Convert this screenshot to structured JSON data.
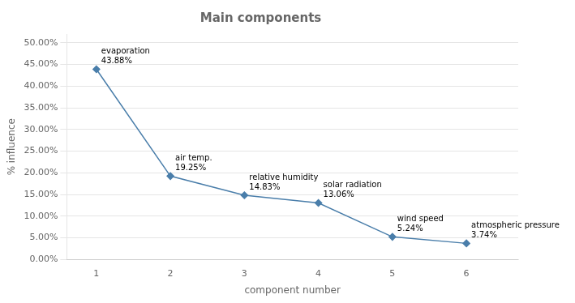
{
  "chart_data": {
    "type": "line",
    "title": "Main components",
    "xlabel": "component number",
    "ylabel": "% influence",
    "x": [
      1,
      2,
      3,
      4,
      5,
      6
    ],
    "values": [
      43.88,
      19.25,
      14.83,
      13.06,
      5.24,
      3.74
    ],
    "annotations": [
      "evaporation",
      "air temp.",
      "relative humidity",
      "solar radiation",
      "wind speed",
      "atmospheric pressure"
    ],
    "data_labels": true,
    "value_labels": [
      "43.88%",
      "19.25%",
      "14.83%",
      "13.06%",
      "5.24%",
      "3.74%"
    ],
    "color": "#4a7eaa",
    "marker": "diamond",
    "line_style": "solid",
    "xlim": [
      0.6,
      6.7
    ],
    "xticks": [
      1,
      2,
      3,
      4,
      5,
      6
    ],
    "ylim": [
      0,
      52
    ],
    "yticks": [
      {
        "value": 0,
        "label": "0.00%"
      },
      {
        "value": 5,
        "label": "5.00%"
      },
      {
        "value": 10,
        "label": "10.00%"
      },
      {
        "value": 15,
        "label": "15.00%"
      },
      {
        "value": 20,
        "label": "20.00%"
      },
      {
        "value": 25,
        "label": "25.00%"
      },
      {
        "value": 30,
        "label": "30.00%"
      },
      {
        "value": 35,
        "label": "35.00%"
      },
      {
        "value": 40,
        "label": "40.00%"
      },
      {
        "value": 45,
        "label": "45.00%"
      },
      {
        "value": 50,
        "label": "50.00%"
      }
    ],
    "grid": "y"
  }
}
